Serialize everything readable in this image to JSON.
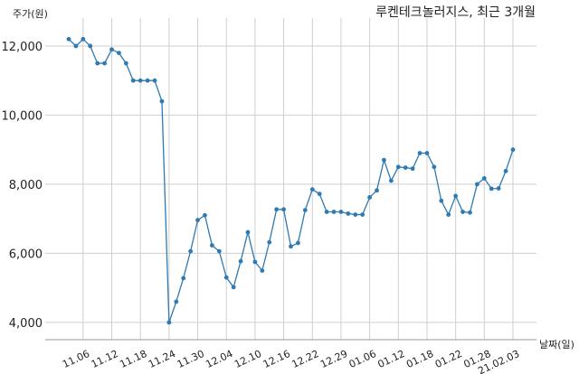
{
  "chart_data": {
    "type": "line",
    "title": "루켄테크놀러지스, 최근 3개월",
    "ylabel": "주가(원)",
    "xlabel": "날짜(일)",
    "ylim": [
      3500,
      12600
    ],
    "yticks": [
      4000,
      6000,
      8000,
      10000,
      12000
    ],
    "ytick_labels": [
      "4,000",
      "6,000",
      "8,000",
      "10,000",
      "12,000"
    ],
    "xtick_labels": [
      "11.06",
      "11.12",
      "11.18",
      "11.24",
      "11.30",
      "12.04",
      "12.10",
      "12.16",
      "12.22",
      "12.29",
      "01.06",
      "01.12",
      "01.18",
      "01.22",
      "01.28",
      "21.02.03"
    ],
    "xtick_index": [
      2,
      6,
      10,
      14,
      18,
      22,
      26,
      30,
      34,
      38,
      42,
      46,
      50,
      54,
      58,
      62
    ],
    "grid": true,
    "color": "#2f7ab3",
    "series": [
      {
        "values": [
          12200,
          12000,
          12200,
          12000,
          11500,
          11500,
          11900,
          11800,
          11500,
          11000,
          11000,
          11000,
          11000,
          10400,
          4000,
          4600,
          5280,
          6060,
          6960,
          7100,
          6230,
          6060,
          5300,
          5020,
          5770,
          6610,
          5750,
          5500,
          6320,
          7270,
          7270,
          6200,
          6300,
          7250,
          7850,
          7720,
          7200,
          7200,
          7200,
          7150,
          7120,
          7120,
          7620,
          7820,
          8700,
          8100,
          8500,
          8480,
          8450,
          8900,
          8900,
          8500,
          7520,
          7120,
          7660,
          7200,
          7180,
          8000,
          8170,
          7870,
          7880,
          8380,
          9000
        ]
      }
    ]
  }
}
